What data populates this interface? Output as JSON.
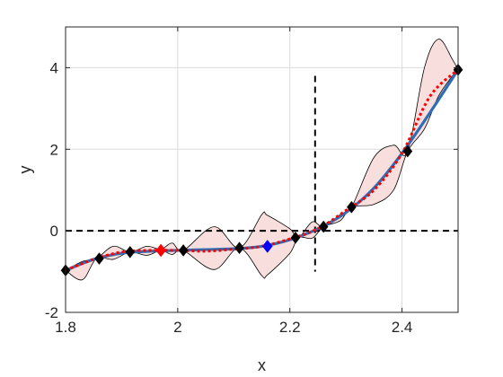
{
  "chart_data": {
    "type": "line",
    "title": "",
    "xlabel": "x",
    "ylabel": "y",
    "xlim": [
      1.8,
      2.5
    ],
    "ylim": [
      -2,
      5
    ],
    "xticks": [
      1.8,
      2.0,
      2.2,
      2.4
    ],
    "xtick_labels": [
      "1.8",
      "2",
      "2.2",
      "2.4"
    ],
    "yticks": [
      -2,
      0,
      2,
      4
    ],
    "ytick_labels": [
      "-2",
      "0",
      "2",
      "4"
    ],
    "grid": true,
    "legend": "none",
    "colors": {
      "band_fill": "#f9dede",
      "band_edge": "#000000",
      "true_function": "#2f6eb5",
      "prediction": "#ff0000",
      "samples": "#000000",
      "highlight_red": "#ff0000",
      "highlight_blue": "#0000ff",
      "reference_lines": "#000000",
      "grid": "#dcdcdc"
    },
    "true_function": {
      "x": [
        1.8,
        1.85,
        1.9,
        1.95,
        2.0,
        2.05,
        2.1,
        2.15,
        2.2,
        2.25,
        2.3,
        2.35,
        2.4,
        2.45,
        2.5
      ],
      "y": [
        -0.97,
        -0.7,
        -0.55,
        -0.5,
        -0.48,
        -0.46,
        -0.44,
        -0.38,
        -0.22,
        0.05,
        0.45,
        1.05,
        1.9,
        2.9,
        3.95
      ]
    },
    "prediction_mean": {
      "x": [
        1.8,
        1.85,
        1.9,
        1.95,
        2.0,
        2.05,
        2.1,
        2.15,
        2.2,
        2.25,
        2.3,
        2.35,
        2.4,
        2.45,
        2.5
      ],
      "y": [
        -0.97,
        -0.7,
        -0.52,
        -0.48,
        -0.48,
        -0.5,
        -0.45,
        -0.38,
        -0.2,
        0.05,
        0.5,
        1.0,
        1.9,
        3.3,
        3.95
      ]
    },
    "confidence_band": {
      "x": [
        1.8,
        1.83,
        1.855,
        1.885,
        1.915,
        1.945,
        1.97,
        1.99,
        2.01,
        2.065,
        2.11,
        2.15,
        2.16,
        2.2,
        2.215,
        2.24,
        2.26,
        2.29,
        2.31,
        2.35,
        2.385,
        2.41,
        2.44,
        2.465,
        2.49,
        2.5
      ],
      "upper": [
        -0.97,
        -0.75,
        -0.68,
        -0.38,
        -0.52,
        -0.38,
        -0.45,
        -0.3,
        -0.48,
        0.1,
        -0.42,
        0.4,
        0.38,
        0.05,
        -0.17,
        0.22,
        0.1,
        0.4,
        0.58,
        1.8,
        2.1,
        1.95,
        4.0,
        4.7,
        4.2,
        3.95
      ],
      "lower": [
        -0.97,
        -1.2,
        -0.68,
        -0.7,
        -0.52,
        -0.6,
        -0.48,
        -0.58,
        -0.48,
        -0.95,
        -0.42,
        -1.1,
        -1.08,
        -0.55,
        -0.17,
        -0.18,
        0.1,
        0.25,
        0.58,
        0.65,
        1.0,
        1.95,
        2.5,
        3.3,
        3.8,
        3.95
      ]
    },
    "samples": {
      "x": [
        1.8,
        1.86,
        1.915,
        1.97,
        2.01,
        2.11,
        2.16,
        2.21,
        2.26,
        2.31,
        2.41,
        2.5
      ],
      "y": [
        -0.97,
        -0.68,
        -0.52,
        -0.48,
        -0.48,
        -0.42,
        -0.38,
        -0.17,
        0.1,
        0.58,
        1.95,
        3.95
      ]
    },
    "highlighted_points": [
      {
        "x": 1.97,
        "y": -0.48,
        "color": "red"
      },
      {
        "x": 2.16,
        "y": -0.38,
        "color": "blue"
      }
    ],
    "reference_lines": {
      "horizontal_y": 0,
      "vertical_x": 2.245,
      "vertical_y_range": [
        -1.0,
        3.8
      ]
    }
  }
}
